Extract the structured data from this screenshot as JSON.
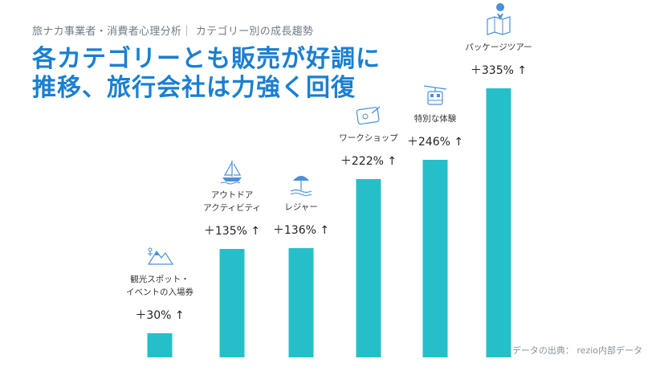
{
  "header": {
    "subtitle": "旅ナカ事業者・消費者心理分析｜ カテゴリー別の成長趨勢",
    "headline_line1": "各カテゴリーとも販売が好調に",
    "headline_line2": "推移、旅行会社は力強く回復"
  },
  "footer": {
    "source": "データの出典： rezio内部データ"
  },
  "colors": {
    "bar": "#26bfc9",
    "headline": "#1a7fd1",
    "icon": "#4a90d9"
  },
  "chart_data": {
    "type": "bar",
    "categories": [
      "観光スポット・イベントの入場券",
      "アウトドアアクティビティ",
      "レジャー",
      "ワークショップ",
      "特別な体験",
      "パッケージツアー"
    ],
    "category_lines": [
      [
        "観光スポット・",
        "イベントの入場券"
      ],
      [
        "アウトドア",
        "アクティビティ"
      ],
      [
        "レジャー"
      ],
      [
        "ワークショップ"
      ],
      [
        "特別な体験"
      ],
      [
        "パッケージツアー"
      ]
    ],
    "values": [
      30,
      135,
      136,
      222,
      246,
      335
    ],
    "value_labels": [
      "＋30% ↑",
      "＋135% ↑",
      "＋136% ↑",
      "＋222% ↑",
      "＋246% ↑",
      "＋335% ↑"
    ],
    "icons": [
      "mountain-icon",
      "sailboat-icon",
      "beach-umbrella-icon",
      "craft-icon",
      "ropeway-icon",
      "map-icon"
    ],
    "unit": "%",
    "grid": false,
    "legend": "none"
  }
}
